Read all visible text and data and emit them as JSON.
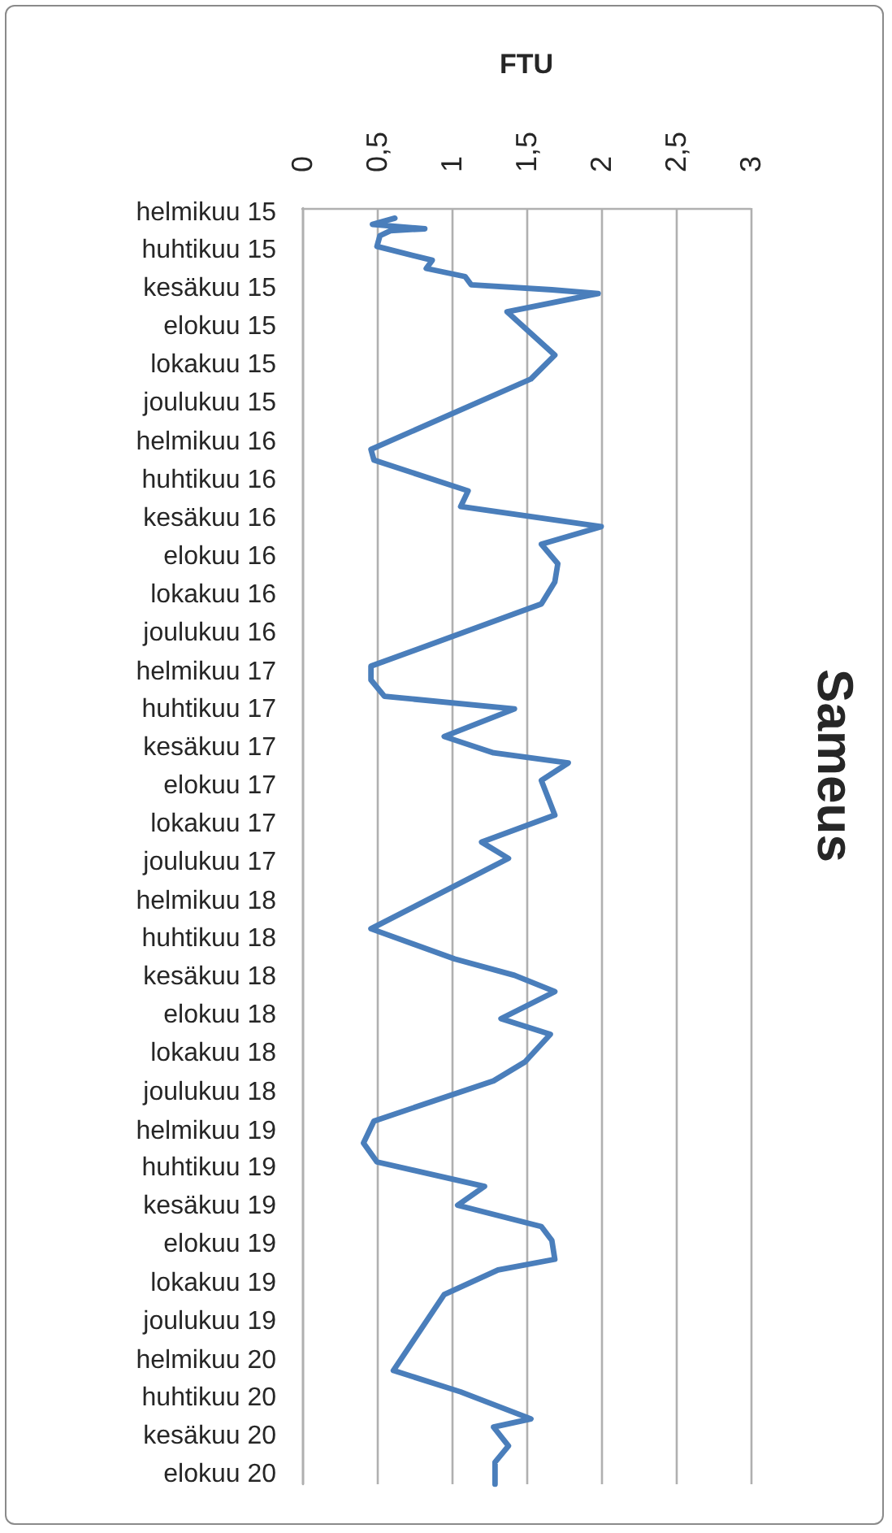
{
  "chart_data": {
    "type": "line",
    "orientation": "horizontal",
    "title": "Sameus",
    "xlabel": "FTU",
    "xlim": [
      0,
      3
    ],
    "xticks": [
      0,
      {
        "value": 0.5,
        "label": "0,5"
      },
      1,
      {
        "value": 1.5,
        "label": "1,5"
      },
      2,
      {
        "value": 2.5,
        "label": "2,5"
      },
      3
    ],
    "ylim": [
      "2020-08-16",
      "2015-01-24"
    ],
    "yticks": [
      {
        "value": "2015-02",
        "label": "helmikuu 15"
      },
      {
        "value": "2015-04",
        "label": "huhtikuu 15"
      },
      {
        "value": "2015-06",
        "label": "kesäkuu 15"
      },
      {
        "value": "2015-08",
        "label": "elokuu 15"
      },
      {
        "value": "2015-10",
        "label": "lokakuu 15"
      },
      {
        "value": "2015-12",
        "label": "joulukuu 15"
      },
      {
        "value": "2016-02",
        "label": "helmikuu 16"
      },
      {
        "value": "2016-04",
        "label": "huhtikuu 16"
      },
      {
        "value": "2016-06",
        "label": "kesäkuu 16"
      },
      {
        "value": "2016-08",
        "label": "elokuu 16"
      },
      {
        "value": "2016-10",
        "label": "lokakuu 16"
      },
      {
        "value": "2016-12",
        "label": "joulukuu 16"
      },
      {
        "value": "2017-02",
        "label": "helmikuu 17"
      },
      {
        "value": "2017-04",
        "label": "huhtikuu 17"
      },
      {
        "value": "2017-06",
        "label": "kesäkuu 17"
      },
      {
        "value": "2017-08",
        "label": "elokuu 17"
      },
      {
        "value": "2017-10",
        "label": "lokakuu 17"
      },
      {
        "value": "2017-12",
        "label": "joulukuu 17"
      },
      {
        "value": "2018-02",
        "label": "helmikuu 18"
      },
      {
        "value": "2018-04",
        "label": "huhtikuu 18"
      },
      {
        "value": "2018-06",
        "label": "kesäkuu 18"
      },
      {
        "value": "2018-08",
        "label": "elokuu 18"
      },
      {
        "value": "2018-10",
        "label": "lokakuu 18"
      },
      {
        "value": "2018-12",
        "label": "joulukuu 18"
      },
      {
        "value": "2019-02",
        "label": "helmikuu 19"
      },
      {
        "value": "2019-04",
        "label": "huhtikuu 19"
      },
      {
        "value": "2019-06",
        "label": "kesäkuu 19"
      },
      {
        "value": "2019-08",
        "label": "elokuu 19"
      },
      {
        "value": "2019-10",
        "label": "lokakuu 19"
      },
      {
        "value": "2019-12",
        "label": "joulukuu 19"
      },
      {
        "value": "2020-02",
        "label": "helmikuu 20"
      },
      {
        "value": "2020-04",
        "label": "huhtikuu 20"
      },
      {
        "value": "2020-06",
        "label": "kesäkuu 20"
      },
      {
        "value": "2020-08",
        "label": "elokuu 20"
      }
    ],
    "x": [
      "2015-02-09",
      "2015-02-19",
      "2015-02-26",
      "2015-03-01",
      "2015-03-09",
      "2015-03-26",
      "2015-04-17",
      "2015-04-30",
      "2015-05-13",
      "2015-05-26",
      "2015-06-03",
      "2015-06-09",
      "2015-07-08",
      "2015-09-15",
      "2015-10-23",
      "2016-02-12",
      "2016-02-29",
      "2016-04-18",
      "2016-05-13",
      "2016-06-14",
      "2016-07-12",
      "2016-08-12",
      "2016-09-10",
      "2016-10-15",
      "2017-01-22",
      "2017-02-13",
      "2017-03-11",
      "2017-03-31",
      "2017-05-14",
      "2017-06-09",
      "2017-06-25",
      "2017-07-23",
      "2017-09-16",
      "2017-10-29",
      "2017-11-24",
      "2018-03-16",
      "2018-05-03",
      "2018-05-29",
      "2018-06-24",
      "2018-08-06",
      "2018-08-31",
      "2018-10-14",
      "2018-11-13",
      "2019-01-16",
      "2019-02-20",
      "2019-03-22",
      "2019-04-30",
      "2019-05-30",
      "2019-07-03",
      "2019-07-25",
      "2019-08-24",
      "2019-09-10",
      "2019-10-19",
      "2020-02-17",
      "2020-03-22",
      "2020-05-04",
      "2020-05-17",
      "2020-06-16",
      "2020-07-12",
      "2020-08-16"
    ],
    "series": [
      {
        "color": "#4a7ebb",
        "values": [
          0.62,
          0.47,
          0.82,
          0.59,
          0.52,
          0.5,
          0.87,
          0.83,
          1.09,
          1.13,
          1.67,
          1.98,
          1.37,
          1.69,
          1.53,
          0.46,
          0.48,
          1.11,
          1.06,
          2.0,
          1.6,
          1.71,
          1.69,
          1.6,
          0.46,
          0.46,
          0.55,
          1.42,
          0.95,
          1.28,
          1.78,
          1.6,
          1.69,
          1.2,
          1.38,
          0.46,
          1.02,
          1.42,
          1.69,
          1.33,
          1.66,
          1.49,
          1.28,
          0.48,
          0.41,
          0.5,
          1.22,
          1.04,
          1.6,
          1.67,
          1.69,
          1.31,
          0.95,
          0.61,
          1.06,
          1.53,
          1.28,
          1.38,
          1.29,
          1.29
        ]
      }
    ],
    "grid": "x",
    "marker": "none",
    "line_style": "solid"
  }
}
